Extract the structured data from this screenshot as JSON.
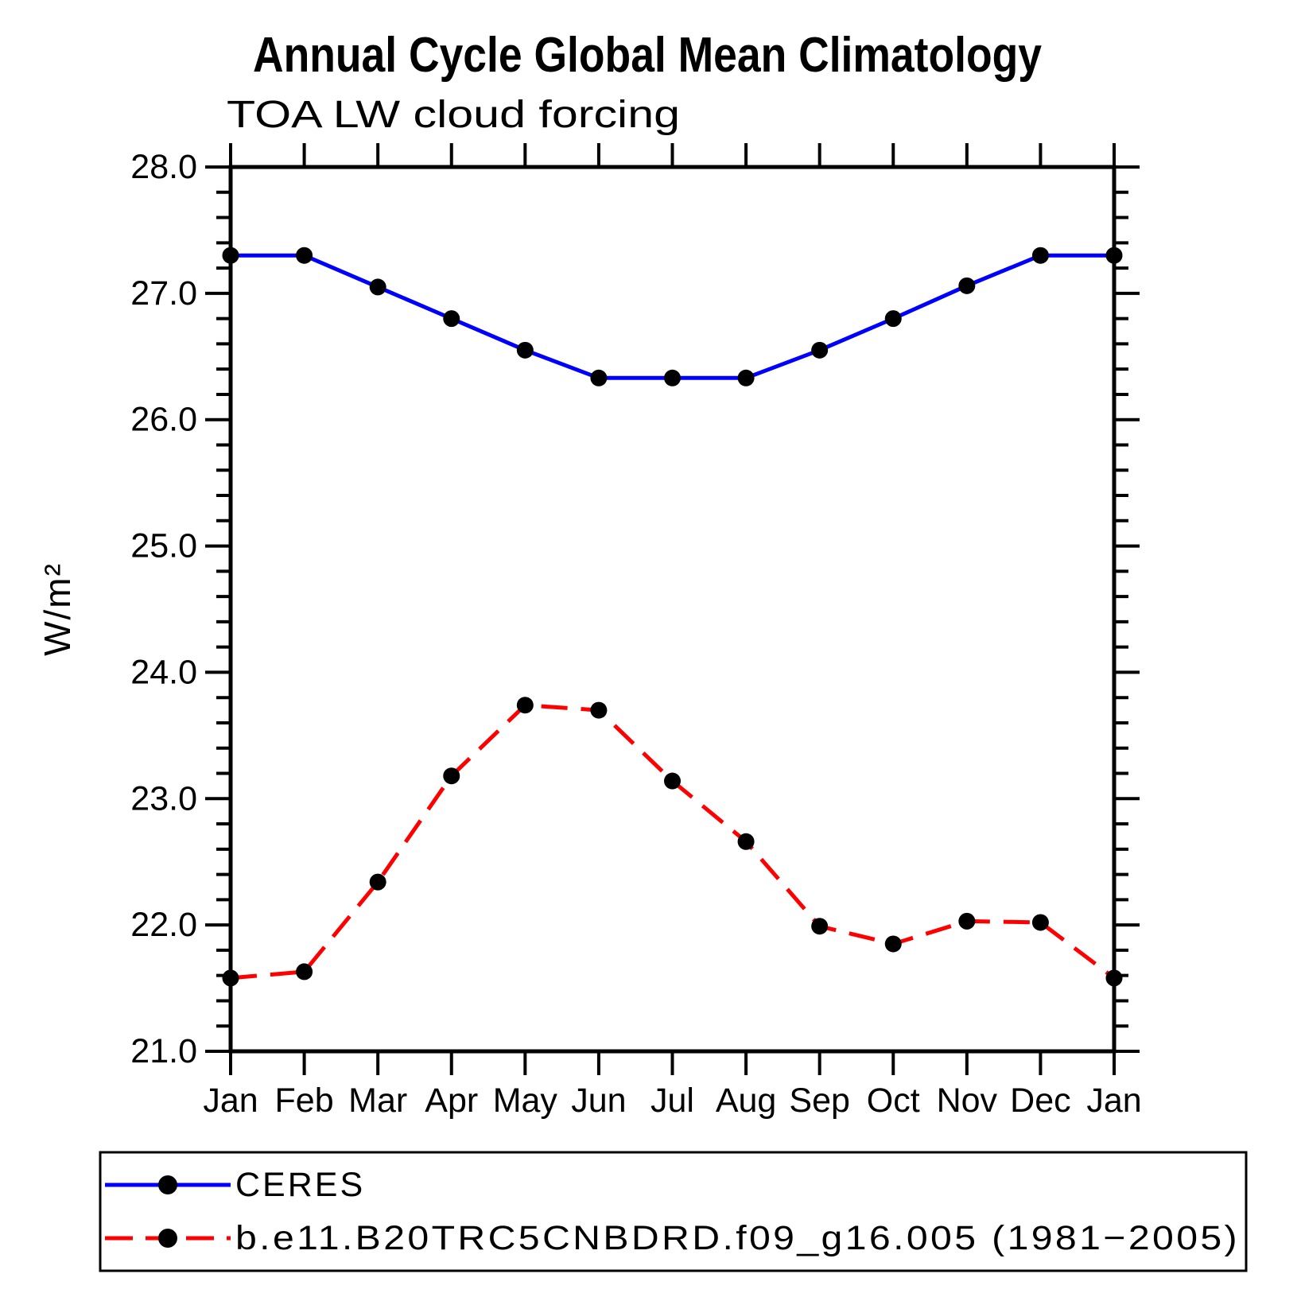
{
  "page": {
    "background": "#ffffff"
  },
  "chart_data": {
    "type": "line",
    "title": "Annual Cycle Global Mean Climatology",
    "subtitle": "TOA LW cloud forcing",
    "ylabel": "W/m²",
    "categories": [
      "Jan",
      "Feb",
      "Mar",
      "Apr",
      "May",
      "Jun",
      "Jul",
      "Aug",
      "Sep",
      "Oct",
      "Nov",
      "Dec",
      "Jan"
    ],
    "ylim": [
      21.0,
      28.0
    ],
    "ytick_interval": 1.0,
    "yminor_interval": 0.2,
    "ytick_labels": [
      "21.0",
      "22.0",
      "23.0",
      "24.0",
      "25.0",
      "26.0",
      "27.0",
      "28.0"
    ],
    "grid": false,
    "legend_position": "bottom",
    "marker": "filled-circle",
    "marker_color": "#000000",
    "series": [
      {
        "name": "CERES",
        "color": "#0000ff",
        "style": "solid",
        "values": [
          27.3,
          27.3,
          27.05,
          26.8,
          26.55,
          26.33,
          26.33,
          26.33,
          26.55,
          26.8,
          27.06,
          27.3,
          27.3
        ]
      },
      {
        "name": "b.e11.B20TRC5CNBDRD.f09_g16.005 (1981−2005)",
        "color": "#ff0000",
        "style": "dashed",
        "values": [
          21.58,
          21.63,
          22.34,
          23.18,
          23.74,
          23.7,
          23.14,
          22.66,
          21.99,
          21.85,
          22.03,
          22.02,
          21.58
        ]
      }
    ]
  }
}
